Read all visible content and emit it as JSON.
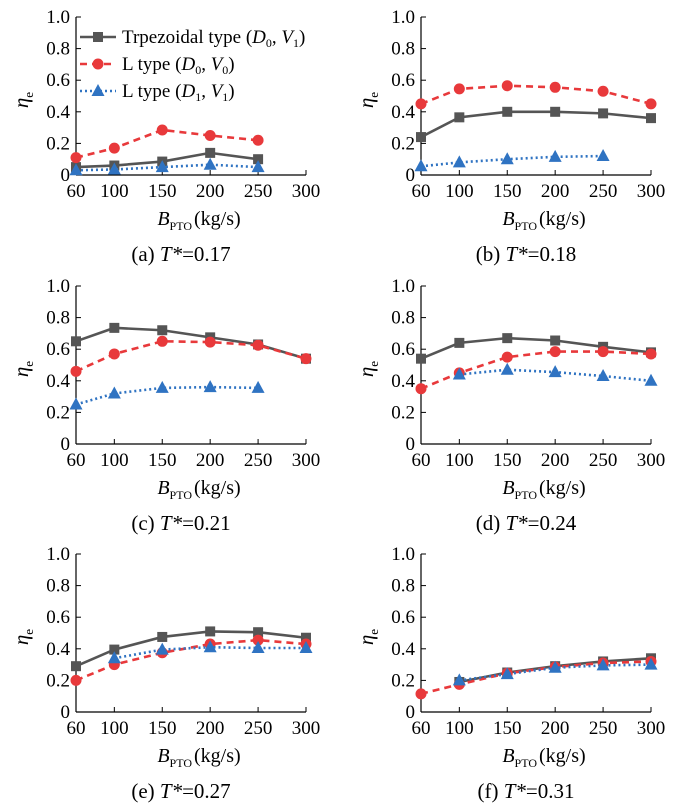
{
  "legend": [
    {
      "series": 0,
      "label": "Trpezoidal type (",
      "d": "D",
      "dsub": "0",
      "v": "V",
      "vsub": "1",
      "close": ")"
    },
    {
      "series": 1,
      "label": "L type (",
      "d": "D",
      "dsub": "0",
      "v": "V",
      "vsub": "0",
      "close": ")"
    },
    {
      "series": 2,
      "label": "L type (",
      "d": "D",
      "dsub": "1",
      "v": "V",
      "vsub": "1",
      "close": ")"
    }
  ],
  "series_styles": [
    {
      "name": "Trpezoidal type (D0, V1)",
      "color": "#555555",
      "marker": "square",
      "dash": "solid"
    },
    {
      "name": "L type (D0, V0)",
      "color": "#e8393b",
      "marker": "circle",
      "dash": "dashed"
    },
    {
      "name": "L type (D1, V1)",
      "color": "#2f73c2",
      "marker": "triangle",
      "dash": "dotted"
    }
  ],
  "xlabel": {
    "main": "B",
    "sub": "PTO",
    "unit": "(kg/s)"
  },
  "ylabel": {
    "main": "η",
    "sub": "e"
  },
  "chart_data": [
    {
      "type": "line",
      "panel": "(a)",
      "caption_prefix": "(a) ",
      "caption_var": "T*",
      "caption_value": "=0.17",
      "x": [
        60,
        100,
        150,
        200,
        250,
        300
      ],
      "xticks": [
        "60",
        "100",
        "150",
        "200",
        "250",
        "300"
      ],
      "ylim": [
        0,
        1.0
      ],
      "yticks": [
        "0",
        "0.2",
        "0.4",
        "0.6",
        "0.8",
        "1.0"
      ],
      "series": [
        {
          "name": "Trpezoidal type (D0, V1)",
          "values": [
            0.05,
            0.06,
            0.085,
            0.14,
            0.1,
            null
          ]
        },
        {
          "name": "L type (D0, V0)",
          "values": [
            0.11,
            0.17,
            0.285,
            0.25,
            0.22,
            null
          ]
        },
        {
          "name": "L type (D1, V1)",
          "values": [
            0.03,
            0.035,
            0.05,
            0.065,
            0.05,
            null
          ]
        }
      ]
    },
    {
      "type": "line",
      "panel": "(b)",
      "caption_prefix": "(b) ",
      "caption_var": "T*",
      "caption_value": "=0.18",
      "x": [
        60,
        100,
        150,
        200,
        250,
        300
      ],
      "xticks": [
        "60",
        "100",
        "150",
        "200",
        "250",
        "300"
      ],
      "ylim": [
        0,
        1.0
      ],
      "yticks": [
        "0",
        "0.2",
        "0.4",
        "0.6",
        "0.8",
        "1.0"
      ],
      "series": [
        {
          "name": "Trpezoidal type (D0, V1)",
          "values": [
            0.24,
            0.365,
            0.4,
            0.4,
            0.39,
            0.36
          ]
        },
        {
          "name": "L type (D0, V0)",
          "values": [
            0.45,
            0.545,
            0.565,
            0.555,
            0.53,
            0.45
          ]
        },
        {
          "name": "L type (D1, V1)",
          "values": [
            0.055,
            0.08,
            0.1,
            0.115,
            0.12,
            null
          ]
        }
      ]
    },
    {
      "type": "line",
      "panel": "(c)",
      "caption_prefix": "(c) ",
      "caption_var": "T*",
      "caption_value": "=0.21",
      "x": [
        60,
        100,
        150,
        200,
        250,
        300
      ],
      "xticks": [
        "60",
        "100",
        "150",
        "200",
        "250",
        "300"
      ],
      "ylim": [
        0,
        1.0
      ],
      "yticks": [
        "0",
        "0.2",
        "0.4",
        "0.6",
        "0.8",
        "1.0"
      ],
      "series": [
        {
          "name": "Trpezoidal type (D0, V1)",
          "values": [
            0.65,
            0.735,
            0.72,
            0.675,
            0.63,
            0.54
          ]
        },
        {
          "name": "L type (D0, V0)",
          "values": [
            0.46,
            0.57,
            0.65,
            0.645,
            0.625,
            0.54
          ]
        },
        {
          "name": "L type (D1, V1)",
          "values": [
            0.25,
            0.32,
            0.355,
            0.36,
            0.355,
            null
          ]
        }
      ]
    },
    {
      "type": "line",
      "panel": "(d)",
      "caption_prefix": "(d) ",
      "caption_var": "T*",
      "caption_value": "=0.24",
      "x": [
        60,
        100,
        150,
        200,
        250,
        300
      ],
      "xticks": [
        "60",
        "100",
        "150",
        "200",
        "250",
        "300"
      ],
      "ylim": [
        0,
        1.0
      ],
      "yticks": [
        "0",
        "0.2",
        "0.4",
        "0.6",
        "0.8",
        "1.0"
      ],
      "series": [
        {
          "name": "Trpezoidal type (D0, V1)",
          "values": [
            0.54,
            0.64,
            0.67,
            0.655,
            0.615,
            0.58
          ]
        },
        {
          "name": "L type (D0, V0)",
          "values": [
            0.35,
            0.45,
            0.55,
            0.585,
            0.585,
            0.57
          ]
        },
        {
          "name": "L type (D1, V1)",
          "values": [
            null,
            0.44,
            0.47,
            0.455,
            0.43,
            0.4
          ]
        }
      ]
    },
    {
      "type": "line",
      "panel": "(e)",
      "caption_prefix": "(e) ",
      "caption_var": "T*",
      "caption_value": "=0.27",
      "x": [
        60,
        100,
        150,
        200,
        250,
        300
      ],
      "xticks": [
        "60",
        "100",
        "150",
        "200",
        "250",
        "300"
      ],
      "ylim": [
        0,
        1.0
      ],
      "yticks": [
        "0",
        "0.2",
        "0.4",
        "0.6",
        "0.8",
        "1.0"
      ],
      "series": [
        {
          "name": "Trpezoidal type (D0, V1)",
          "values": [
            0.29,
            0.395,
            0.475,
            0.51,
            0.505,
            0.47
          ]
        },
        {
          "name": "L type (D0, V0)",
          "values": [
            0.2,
            0.3,
            0.375,
            0.43,
            0.455,
            0.43
          ]
        },
        {
          "name": "L type (D1, V1)",
          "values": [
            null,
            0.34,
            0.395,
            0.41,
            0.405,
            0.405
          ]
        }
      ]
    },
    {
      "type": "line",
      "panel": "(f)",
      "caption_prefix": "(f) ",
      "caption_var": "T*",
      "caption_value": "=0.31",
      "x": [
        60,
        100,
        150,
        200,
        250,
        300
      ],
      "xticks": [
        "60",
        "100",
        "150",
        "200",
        "250",
        "300"
      ],
      "ylim": [
        0,
        1.0
      ],
      "yticks": [
        "0",
        "0.2",
        "0.4",
        "0.6",
        "0.8",
        "1.0"
      ],
      "series": [
        {
          "name": "Trpezoidal type (D0, V1)",
          "values": [
            null,
            0.19,
            0.25,
            0.29,
            0.32,
            0.34
          ]
        },
        {
          "name": "L type (D0, V0)",
          "values": [
            0.115,
            0.175,
            0.245,
            0.285,
            0.31,
            0.32
          ]
        },
        {
          "name": "L type (D1, V1)",
          "values": [
            null,
            0.2,
            0.24,
            0.28,
            0.295,
            0.3
          ]
        }
      ]
    }
  ]
}
